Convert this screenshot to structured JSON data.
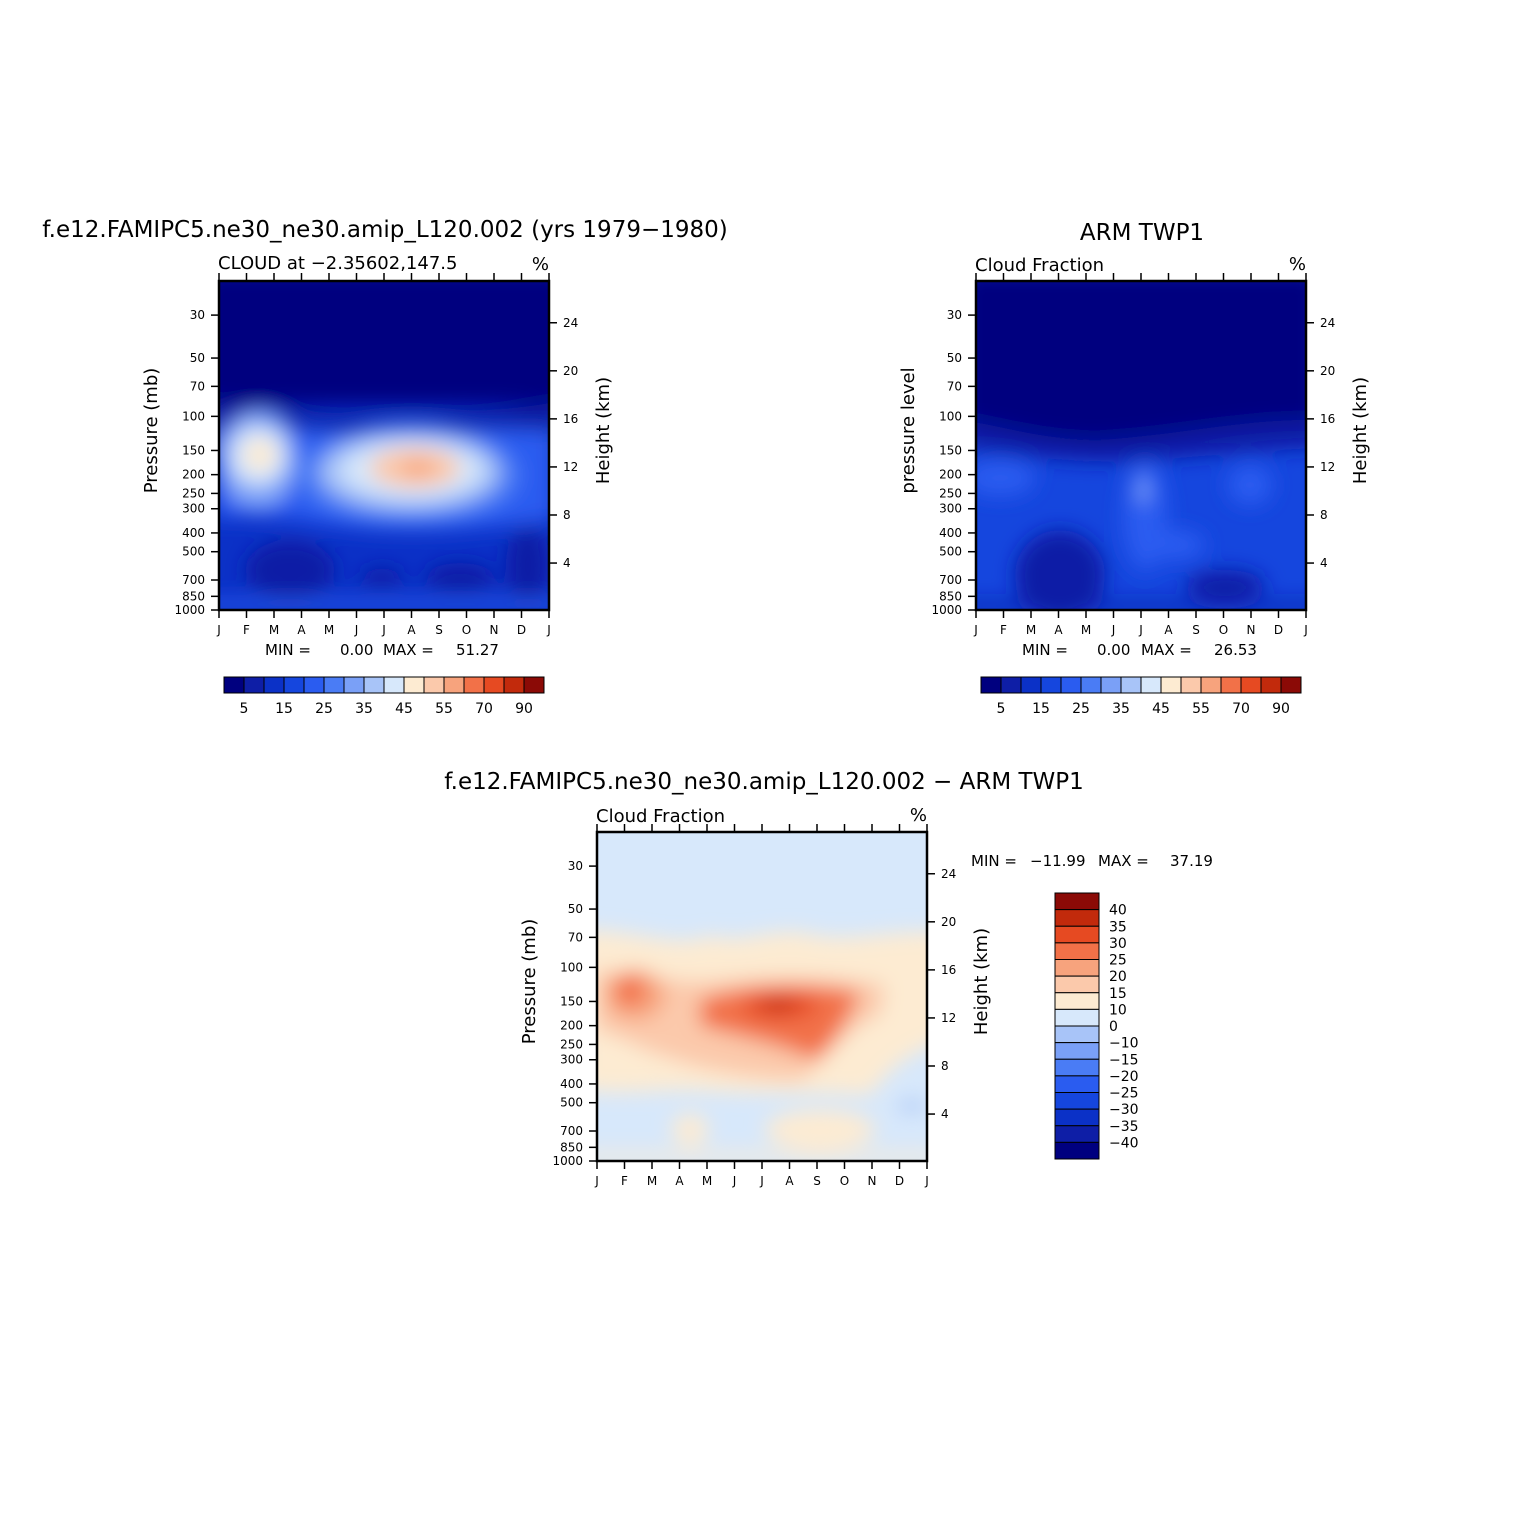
{
  "colors": {
    "cloud_palette": [
      "#00007f",
      "#0e1ea6",
      "#0b31c7",
      "#1546de",
      "#2a5cf0",
      "#4a7cf5",
      "#7aa0f7",
      "#a8c4f8",
      "#d7e8fb",
      "#fdebd2",
      "#fbc9ab",
      "#f7a37d",
      "#f27148",
      "#e64a22",
      "#c22a0c",
      "#8b0a06"
    ],
    "diff_palette": [
      "#00007f",
      "#0e1ea6",
      "#0b31c7",
      "#1546de",
      "#2a5cf0",
      "#4a7cf5",
      "#7aa0f7",
      "#a8c4f8",
      "#d7e8fb",
      "#fdebd2",
      "#fbc9ab",
      "#f7a37d",
      "#f27148",
      "#e64a22",
      "#c22a0c",
      "#8b0a06"
    ]
  },
  "chart_data": [
    {
      "type": "heatmap",
      "id": "model",
      "title": "f.e12.FAMIPC5.ne30_ne30.amip_L120.002 (yrs 1979−1980)",
      "subtitle": "CLOUD at −2.35602,147.5",
      "units": "%",
      "xlabel": "",
      "ylabel": "Pressure (mb)",
      "y2label": "Height (km)",
      "x_ticks": [
        "J",
        "F",
        "M",
        "A",
        "M",
        "J",
        "J",
        "A",
        "S",
        "O",
        "N",
        "D",
        "J"
      ],
      "y_ticks": [
        30,
        50,
        70,
        100,
        150,
        200,
        250,
        300,
        400,
        500,
        700,
        850,
        1000
      ],
      "y_range": [
        1000,
        20
      ],
      "y_scale": "log",
      "y2_ticks": [
        4,
        8,
        12,
        16,
        20,
        24
      ],
      "min_label": "MIN =",
      "min_value": "0.00",
      "max_label": "MAX =",
      "max_value": "51.27",
      "colorbar_labels": [
        "5",
        "15",
        "25",
        "35",
        "45",
        "55",
        "70",
        "90"
      ],
      "grid": false
    },
    {
      "type": "heatmap",
      "id": "obs",
      "title": "ARM TWP1",
      "subtitle": "Cloud Fraction",
      "units": "%",
      "xlabel": "",
      "ylabel": "pressure level",
      "y2label": "Height (km)",
      "x_ticks": [
        "J",
        "F",
        "M",
        "A",
        "M",
        "J",
        "J",
        "A",
        "S",
        "O",
        "N",
        "D",
        "J"
      ],
      "y_ticks": [
        30,
        50,
        70,
        100,
        150,
        200,
        250,
        300,
        400,
        500,
        700,
        850,
        1000
      ],
      "y_range": [
        1000,
        20
      ],
      "y_scale": "log",
      "y2_ticks": [
        4,
        8,
        12,
        16,
        20,
        24
      ],
      "min_label": "MIN =",
      "min_value": "0.00",
      "max_label": "MAX =",
      "max_value": "26.53",
      "colorbar_labels": [
        "5",
        "15",
        "25",
        "35",
        "45",
        "55",
        "70",
        "90"
      ],
      "grid": false
    },
    {
      "type": "heatmap",
      "id": "diff",
      "title": "f.e12.FAMIPC5.ne30_ne30.amip_L120.002 − ARM TWP1",
      "subtitle": "Cloud Fraction",
      "units": "%",
      "xlabel": "",
      "ylabel": "Pressure (mb)",
      "y2label": "Height (km)",
      "x_ticks": [
        "J",
        "F",
        "M",
        "A",
        "M",
        "J",
        "J",
        "A",
        "S",
        "O",
        "N",
        "D",
        "J"
      ],
      "y_ticks": [
        30,
        50,
        70,
        100,
        150,
        200,
        250,
        300,
        400,
        500,
        700,
        850,
        1000
      ],
      "y_range": [
        1000,
        20
      ],
      "y_scale": "log",
      "y2_ticks": [
        4,
        8,
        12,
        16,
        20,
        24
      ],
      "min_label": "MIN =",
      "min_value": "−11.99",
      "max_label": "MAX =",
      "max_value": "37.19",
      "colorbar_labels": [
        "40",
        "35",
        "30",
        "25",
        "20",
        "15",
        "10",
        "0",
        "−10",
        "−15",
        "−20",
        "−25",
        "−30",
        "−35",
        "−40"
      ],
      "grid": false
    }
  ]
}
